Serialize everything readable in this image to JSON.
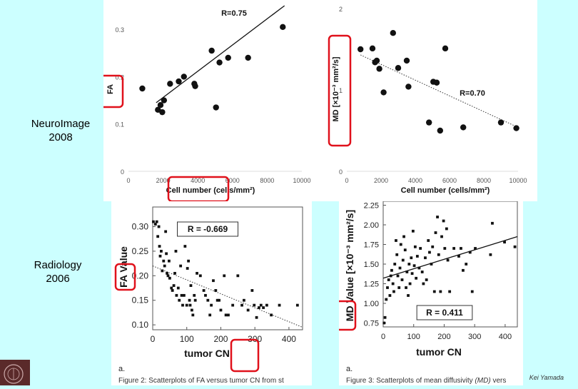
{
  "labels": {
    "neuroimage_line1": "NeuroImage",
    "neuroimage_line2": "2008",
    "radiology_line1": "Radiology",
    "radiology_line2": "2006",
    "credit": "Kei Yamada"
  },
  "captions": {
    "left_letter": "a.",
    "left_caption": "Figure 2:  Scatterplots of FA versus tumor CN from st",
    "right_letter": "a.",
    "right_caption_prefix": "Figure 3:  Scatterplots of mean diffusivity ",
    "right_caption_italic": "(MD)",
    "right_caption_suffix": " vers"
  },
  "chart_data": [
    {
      "id": "top-left",
      "type": "scatter",
      "ylabel": "FA",
      "xlabel": "Cell number (cells/mm²)",
      "annotation": "R=0.75",
      "xlim": [
        0,
        10000
      ],
      "ylim": [
        0,
        0.35
      ],
      "xticks": [
        "0",
        "2000",
        "4000",
        "6000",
        "8000",
        "10000"
      ],
      "xtick_values": [
        0,
        2000,
        4000,
        6000,
        8000,
        10000
      ],
      "yticks": [
        "0",
        "0.1",
        "0.2",
        "0.3"
      ],
      "ytick_values": [
        0,
        0.1,
        0.2,
        0.3
      ],
      "points": [
        [
          800,
          0.175
        ],
        [
          1700,
          0.13
        ],
        [
          1850,
          0.14
        ],
        [
          1950,
          0.125
        ],
        [
          2050,
          0.15
        ],
        [
          2400,
          0.185
        ],
        [
          2900,
          0.19
        ],
        [
          3200,
          0.2
        ],
        [
          3800,
          0.185
        ],
        [
          3850,
          0.18
        ],
        [
          4800,
          0.255
        ],
        [
          5050,
          0.135
        ],
        [
          5250,
          0.23
        ],
        [
          5750,
          0.24
        ],
        [
          6900,
          0.24
        ],
        [
          8900,
          0.305
        ]
      ],
      "trend": [
        [
          1600,
          0.145
        ],
        [
          9000,
          0.35
        ]
      ],
      "trend_style": "solid"
    },
    {
      "id": "top-right",
      "type": "scatter",
      "ylabel": "MD [×10⁻³ mm²/s]",
      "xlabel": "Cell number (cells/mm²)",
      "annotation": "R=0.70",
      "xlim": [
        0,
        10000
      ],
      "ylim": [
        0,
        2
      ],
      "xticks": [
        "0",
        "2000",
        "4000",
        "6000",
        "8000",
        "10000"
      ],
      "xtick_values": [
        0,
        2000,
        4000,
        6000,
        8000,
        10000
      ],
      "yticks": [
        "0",
        "1",
        "2"
      ],
      "ytick_values": [
        0,
        1,
        2
      ],
      "points": [
        [
          800,
          1.5
        ],
        [
          1500,
          1.51
        ],
        [
          1650,
          1.34
        ],
        [
          1750,
          1.36
        ],
        [
          1900,
          1.26
        ],
        [
          2150,
          0.97
        ],
        [
          2700,
          1.7
        ],
        [
          3000,
          1.27
        ],
        [
          3500,
          1.36
        ],
        [
          3600,
          1.04
        ],
        [
          4800,
          0.6
        ],
        [
          5050,
          1.1
        ],
        [
          5250,
          1.09
        ],
        [
          5450,
          0.5
        ],
        [
          5750,
          1.51
        ],
        [
          6800,
          0.54
        ],
        [
          9000,
          0.6
        ],
        [
          9900,
          0.53
        ]
      ],
      "trend": [
        [
          800,
          1.43
        ],
        [
          10000,
          0.54
        ]
      ],
      "trend_style": "dotted"
    },
    {
      "id": "bottom-left",
      "type": "scatter",
      "ylabel": "FA Value",
      "xlabel": "tumor CN",
      "annotation": "R = -0.669",
      "xlim": [
        0,
        440
      ],
      "ylim": [
        0.09,
        0.34
      ],
      "xticks": [
        "0",
        "100",
        "200",
        "300",
        "400"
      ],
      "xtick_values": [
        0,
        100,
        200,
        300,
        400
      ],
      "yticks": [
        "0.10",
        "0.15",
        "0.20",
        "0.25",
        "0.30"
      ],
      "ytick_values": [
        0.1,
        0.15,
        0.2,
        0.25,
        0.3
      ],
      "points": [
        [
          2,
          0.31
        ],
        [
          8,
          0.305
        ],
        [
          12,
          0.31
        ],
        [
          15,
          0.28
        ],
        [
          18,
          0.3
        ],
        [
          20,
          0.26
        ],
        [
          22,
          0.24
        ],
        [
          25,
          0.25
        ],
        [
          28,
          0.21
        ],
        [
          32,
          0.23
        ],
        [
          35,
          0.22
        ],
        [
          38,
          0.29
        ],
        [
          40,
          0.245
        ],
        [
          42,
          0.205
        ],
        [
          45,
          0.2
        ],
        [
          48,
          0.23
        ],
        [
          50,
          0.195
        ],
        [
          55,
          0.175
        ],
        [
          58,
          0.17
        ],
        [
          62,
          0.18
        ],
        [
          65,
          0.205
        ],
        [
          68,
          0.25
        ],
        [
          70,
          0.16
        ],
        [
          75,
          0.175
        ],
        [
          78,
          0.15
        ],
        [
          82,
          0.22
        ],
        [
          85,
          0.16
        ],
        [
          88,
          0.14
        ],
        [
          92,
          0.16
        ],
        [
          95,
          0.26
        ],
        [
          100,
          0.14
        ],
        [
          102,
          0.215
        ],
        [
          105,
          0.23
        ],
        [
          108,
          0.15
        ],
        [
          110,
          0.14
        ],
        [
          112,
          0.18
        ],
        [
          115,
          0.13
        ],
        [
          118,
          0.12
        ],
        [
          122,
          0.16
        ],
        [
          125,
          0.15
        ],
        [
          130,
          0.205
        ],
        [
          140,
          0.2
        ],
        [
          150,
          0.17
        ],
        [
          155,
          0.16
        ],
        [
          162,
          0.15
        ],
        [
          168,
          0.12
        ],
        [
          172,
          0.14
        ],
        [
          178,
          0.19
        ],
        [
          185,
          0.17
        ],
        [
          190,
          0.15
        ],
        [
          195,
          0.15
        ],
        [
          200,
          0.13
        ],
        [
          210,
          0.2
        ],
        [
          215,
          0.12
        ],
        [
          222,
          0.12
        ],
        [
          235,
          0.14
        ],
        [
          250,
          0.2
        ],
        [
          262,
          0.14
        ],
        [
          268,
          0.15
        ],
        [
          280,
          0.13
        ],
        [
          292,
          0.17
        ],
        [
          298,
          0.14
        ],
        [
          305,
          0.115
        ],
        [
          312,
          0.135
        ],
        [
          318,
          0.14
        ],
        [
          325,
          0.135
        ],
        [
          335,
          0.14
        ],
        [
          348,
          0.12
        ],
        [
          372,
          0.14
        ],
        [
          425,
          0.14
        ]
      ],
      "trend": [
        [
          0,
          0.22
        ],
        [
          440,
          0.095
        ]
      ],
      "trend_style": "dotted"
    },
    {
      "id": "bottom-right",
      "type": "scatter",
      "ylabel": "MD Value [×10⁻³ mm²/s]",
      "xlabel": "tumor CN",
      "annotation": "R = 0.411",
      "xlim": [
        0,
        440
      ],
      "ylim": [
        0.7,
        2.3
      ],
      "xticks": [
        "0",
        "100",
        "200",
        "300",
        "400"
      ],
      "xtick_values": [
        0,
        100,
        200,
        300,
        400
      ],
      "yticks": [
        "0.75",
        "1.00",
        "1.25",
        "1.50",
        "1.75",
        "2.00",
        "2.25"
      ],
      "ytick_values": [
        0.75,
        1.0,
        1.25,
        1.5,
        1.75,
        2.0,
        2.25
      ],
      "points": [
        [
          3,
          0.75
        ],
        [
          6,
          0.82
        ],
        [
          10,
          1.05
        ],
        [
          14,
          1.2
        ],
        [
          18,
          1.3
        ],
        [
          22,
          1.1
        ],
        [
          25,
          1.35
        ],
        [
          28,
          1.42
        ],
        [
          32,
          1.25
        ],
        [
          35,
          1.15
        ],
        [
          38,
          1.5
        ],
        [
          42,
          1.8
        ],
        [
          45,
          1.62
        ],
        [
          48,
          1.35
        ],
        [
          52,
          1.2
        ],
        [
          55,
          1.45
        ],
        [
          58,
          1.75
        ],
        [
          62,
          1.3
        ],
        [
          65,
          1.55
        ],
        [
          68,
          1.85
        ],
        [
          72,
          1.68
        ],
        [
          75,
          1.2
        ],
        [
          78,
          1.4
        ],
        [
          82,
          1.1
        ],
        [
          85,
          1.5
        ],
        [
          88,
          1.25
        ],
        [
          92,
          1.58
        ],
        [
          95,
          1.38
        ],
        [
          98,
          1.92
        ],
        [
          102,
          1.48
        ],
        [
          105,
          1.72
        ],
        [
          108,
          1.32
        ],
        [
          112,
          1.6
        ],
        [
          118,
          1.45
        ],
        [
          122,
          1.7
        ],
        [
          128,
          1.4
        ],
        [
          132,
          1.25
        ],
        [
          138,
          1.58
        ],
        [
          142,
          1.3
        ],
        [
          148,
          1.8
        ],
        [
          152,
          1.65
        ],
        [
          158,
          1.5
        ],
        [
          162,
          1.72
        ],
        [
          168,
          1.15
        ],
        [
          172,
          1.9
        ],
        [
          178,
          2.1
        ],
        [
          182,
          1.62
        ],
        [
          188,
          1.15
        ],
        [
          192,
          1.85
        ],
        [
          198,
          2.05
        ],
        [
          202,
          1.7
        ],
        [
          208,
          1.95
        ],
        [
          212,
          1.55
        ],
        [
          218,
          1.15
        ],
        [
          232,
          1.7
        ],
        [
          248,
          1.6
        ],
        [
          255,
          1.7
        ],
        [
          262,
          1.42
        ],
        [
          272,
          1.5
        ],
        [
          285,
          1.65
        ],
        [
          292,
          1.15
        ],
        [
          302,
          1.7
        ],
        [
          352,
          1.62
        ],
        [
          358,
          2.02
        ],
        [
          398,
          1.78
        ],
        [
          432,
          1.72
        ]
      ],
      "trend": [
        [
          0,
          1.32
        ],
        [
          440,
          1.85
        ]
      ],
      "trend_style": "solid"
    }
  ]
}
